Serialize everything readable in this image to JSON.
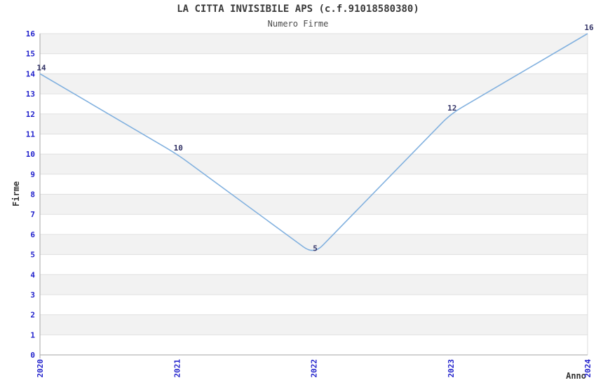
{
  "chart": {
    "title": "LA CITTA INVISIBILE APS (c.f.91018580380)",
    "subtitle": "Numero Firme",
    "y_axis_title": "Firme",
    "x_axis_title": "Anno"
  },
  "chart_data": {
    "type": "line",
    "categories": [
      "2020",
      "2021",
      "2022",
      "2023",
      "2024"
    ],
    "values": [
      14,
      10,
      5,
      12,
      16
    ],
    "title": "LA CITTA INVISIBILE APS (c.f.91018580380)",
    "subtitle": "Numero Firme",
    "xlabel": "Anno",
    "ylabel": "Firme",
    "ylim": [
      0,
      16
    ],
    "y_tick_step": 1,
    "grid": true,
    "legend": false,
    "data_labels_shown": true,
    "colors": {
      "line": "#82B1DF",
      "tick_labels": "#2323CC",
      "data_labels": "#333366",
      "band": "#F2F2F2",
      "gridline": "#E0E0E0",
      "axis": "#A6A6A6",
      "plot_border": "#DDDDDD",
      "title": "#3A3A3A"
    }
  }
}
